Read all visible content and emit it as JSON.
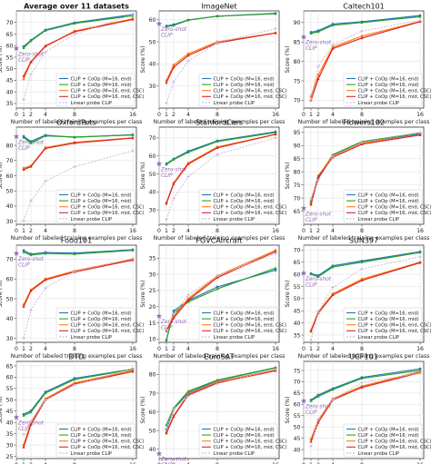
{
  "legend_labels": [
    "CLIP + CoOp (M=16, end)",
    "CLIP + CoOp (M=16, mid)",
    "CLIP + CoOp (M=16, end, CSC)",
    "CLIP + CoOp (M=16, mid, CSC)",
    "Linear probe CLIP"
  ],
  "series_colors": [
    "#1f77b4",
    "#2ca02c",
    "#ff7f0e",
    "#d62728",
    "#c8b4e0"
  ],
  "zeroshot_label": "Zero-shot\nCLIP",
  "zeroshot_color": "#9467bd",
  "chart_data": [
    {
      "type": "line",
      "title": "Average over 11 datasets",
      "xlabel": "Number of labeled training examples per class",
      "ylabel": "Score (%)",
      "x": [
        1,
        2,
        4,
        8,
        16
      ],
      "xticks": [
        0,
        1,
        2,
        4,
        8,
        16
      ],
      "xlim": [
        0,
        16.5
      ],
      "ylim": [
        33,
        75
      ],
      "yticks": [
        35,
        40,
        45,
        50,
        55,
        60,
        65,
        70
      ],
      "zeroshot": 58.8,
      "series": [
        {
          "name": "CLIP + CoOp (M=16, end)",
          "values": [
            59.6,
            62.3,
            66.8,
            69.9,
            73.4
          ]
        },
        {
          "name": "CLIP + CoOp (M=16, mid)",
          "values": [
            59.0,
            62.0,
            66.5,
            69.6,
            72.9
          ]
        },
        {
          "name": "CLIP + CoOp (M=16, end, CSC)",
          "values": [
            45.5,
            52.8,
            59.6,
            66.3,
            71.6
          ]
        },
        {
          "name": "CLIP + CoOp (M=16, mid, CSC)",
          "values": [
            46.8,
            53.0,
            59.9,
            66.0,
            71.3
          ]
        },
        {
          "name": "Linear probe CLIP",
          "values": [
            36.7,
            47.6,
            57.2,
            65.0,
            73.4
          ]
        }
      ]
    },
    {
      "type": "line",
      "title": "ImageNet",
      "xlabel": "Number of labeled training examples per class",
      "ylabel": "Score (%)",
      "x": [
        1,
        2,
        4,
        8,
        16
      ],
      "xticks": [
        0,
        1,
        2,
        4,
        8,
        16
      ],
      "xlim": [
        0,
        16.5
      ],
      "ylim": [
        20,
        64
      ],
      "yticks": [
        30,
        40,
        50,
        60
      ],
      "zeroshot": 58.2,
      "series": [
        {
          "name": "CLIP + CoOp (M=16, end)",
          "values": [
            57.2,
            57.8,
            59.9,
            61.6,
            62.9
          ]
        },
        {
          "name": "CLIP + CoOp (M=16, mid)",
          "values": [
            56.9,
            57.4,
            59.8,
            61.6,
            62.7
          ]
        },
        {
          "name": "CLIP + CoOp (M=16, end, CSC)",
          "values": [
            32.5,
            39.5,
            44.6,
            50.0,
            54.0
          ]
        },
        {
          "name": "CLIP + CoOp (M=16, mid, CSC)",
          "values": [
            31.5,
            38.5,
            43.8,
            49.5,
            54.0
          ]
        },
        {
          "name": "Linear probe CLIP",
          "values": [
            22.2,
            31.9,
            41.3,
            49.6,
            55.9
          ]
        }
      ]
    },
    {
      "type": "line",
      "title": "Caltech101",
      "xlabel": "Number of labeled training examples per class",
      "ylabel": "Score (%)",
      "x": [
        1,
        2,
        4,
        8,
        16
      ],
      "xticks": [
        0,
        1,
        2,
        4,
        8,
        16
      ],
      "xlim": [
        0,
        16.5
      ],
      "ylim": [
        68,
        93
      ],
      "yticks": [
        70,
        75,
        80,
        85,
        90
      ],
      "zeroshot": 86.3,
      "series": [
        {
          "name": "CLIP + CoOp (M=16, end)",
          "values": [
            87.5,
            87.9,
            89.6,
            90.2,
            91.8
          ]
        },
        {
          "name": "CLIP + CoOp (M=16, mid)",
          "values": [
            87.2,
            87.6,
            89.3,
            90.0,
            91.5
          ]
        },
        {
          "name": "CLIP + CoOp (M=16, end, CSC)",
          "values": [
            71.0,
            76.5,
            83.7,
            86.5,
            90.3
          ]
        },
        {
          "name": "CLIP + CoOp (M=16, mid, CSC)",
          "values": [
            70.0,
            75.5,
            83.3,
            86.0,
            90.2
          ]
        },
        {
          "name": "Linear probe CLIP",
          "values": [
            70.2,
            78.7,
            84.3,
            87.8,
            90.6
          ]
        }
      ]
    },
    {
      "type": "line",
      "title": "OxfordPets",
      "xlabel": "Number of labeled training examples per class",
      "ylabel": "Score (%)",
      "x": [
        1,
        2,
        4,
        8,
        16
      ],
      "xticks": [
        0,
        1,
        2,
        4,
        8,
        16
      ],
      "xlim": [
        0,
        16.5
      ],
      "ylim": [
        28,
        92
      ],
      "yticks": [
        30,
        40,
        50,
        60,
        70,
        80
      ],
      "zeroshot": 85.8,
      "series": [
        {
          "name": "CLIP + CoOp (M=16, end)",
          "values": [
            85.9,
            82.6,
            86.7,
            85.3,
            87.0
          ]
        },
        {
          "name": "CLIP + CoOp (M=16, mid)",
          "values": [
            85.2,
            81.5,
            86.2,
            85.5,
            86.8
          ]
        },
        {
          "name": "CLIP + CoOp (M=16, end, CSC)",
          "values": [
            65.0,
            66.5,
            78.5,
            82.0,
            85.0
          ]
        },
        {
          "name": "CLIP + CoOp (M=16, mid, CSC)",
          "values": [
            64.0,
            66.0,
            78.0,
            81.5,
            84.8
          ]
        },
        {
          "name": "Linear probe CLIP",
          "values": [
            30.2,
            43.5,
            56.4,
            65.9,
            76.4
          ]
        }
      ]
    },
    {
      "type": "line",
      "title": "StanfordCars",
      "xlabel": "Number of labeled training examples per class",
      "ylabel": "Score (%)",
      "x": [
        1,
        2,
        4,
        8,
        16
      ],
      "xticks": [
        0,
        1,
        2,
        4,
        8,
        16
      ],
      "xlim": [
        0,
        16.5
      ],
      "ylim": [
        22,
        76
      ],
      "yticks": [
        30,
        40,
        50,
        60,
        70
      ],
      "zeroshot": 55.6,
      "series": [
        {
          "name": "CLIP + CoOp (M=16, end)",
          "values": [
            55.6,
            58.3,
            62.6,
            68.4,
            73.4
          ]
        },
        {
          "name": "CLIP + CoOp (M=16, mid)",
          "values": [
            55.2,
            58.0,
            62.0,
            68.0,
            73.0
          ]
        },
        {
          "name": "CLIP + CoOp (M=16, end, CSC)",
          "values": [
            34.0,
            45.0,
            56.0,
            65.0,
            72.0
          ]
        },
        {
          "name": "CLIP + CoOp (M=16, mid, CSC)",
          "values": [
            33.5,
            44.5,
            55.5,
            64.5,
            72.0
          ]
        },
        {
          "name": "Linear probe CLIP",
          "values": [
            24.6,
            36.4,
            48.4,
            60.8,
            70.1
          ]
        }
      ]
    },
    {
      "type": "line",
      "title": "Flowers102",
      "xlabel": "Number of labeled training examples per class",
      "ylabel": "Score (%)",
      "x": [
        1,
        2,
        4,
        8,
        16
      ],
      "xticks": [
        0,
        1,
        2,
        4,
        8,
        16
      ],
      "xlim": [
        0,
        16.5
      ],
      "ylim": [
        60,
        97
      ],
      "yticks": [
        65,
        70,
        75,
        80,
        85,
        90,
        95
      ],
      "zeroshot": 66.1,
      "series": [
        {
          "name": "CLIP + CoOp (M=16, end)",
          "values": [
            68.1,
            77.5,
            86.2,
            91.2,
            94.5
          ]
        },
        {
          "name": "CLIP + CoOp (M=16, mid)",
          "values": [
            69.0,
            78.0,
            86.5,
            91.5,
            94.8
          ]
        },
        {
          "name": "CLIP + CoOp (M=16, end, CSC)",
          "values": [
            68.0,
            78.5,
            86.0,
            91.0,
            94.0
          ]
        },
        {
          "name": "CLIP + CoOp (M=16, mid, CSC)",
          "values": [
            67.5,
            78.0,
            85.5,
            90.5,
            94.0
          ]
        },
        {
          "name": "Linear probe CLIP",
          "values": [
            69.7,
            76.8,
            85.8,
            91.2,
            94.9
          ]
        }
      ]
    },
    {
      "type": "line",
      "title": "Food101",
      "xlabel": "Number of labeled training examples per class",
      "ylabel": "Score (%)",
      "x": [
        1,
        2,
        4,
        8,
        16
      ],
      "xticks": [
        0,
        1,
        2,
        4,
        8,
        16
      ],
      "xlim": [
        0,
        16.5
      ],
      "ylim": [
        28,
        77
      ],
      "yticks": [
        30,
        40,
        50,
        60,
        70
      ],
      "zeroshot": 72.9,
      "series": [
        {
          "name": "CLIP + CoOp (M=16, end)",
          "values": [
            74.3,
            72.5,
            73.3,
            73.0,
            74.7
          ]
        },
        {
          "name": "CLIP + CoOp (M=16, mid)",
          "values": [
            73.5,
            72.0,
            72.8,
            72.5,
            74.4
          ]
        },
        {
          "name": "CLIP + CoOp (M=16, end, CSC)",
          "values": [
            47.0,
            54.5,
            60.0,
            64.0,
            70.0
          ]
        },
        {
          "name": "CLIP + CoOp (M=16, mid, CSC)",
          "values": [
            46.0,
            54.0,
            59.5,
            63.5,
            69.5
          ]
        },
        {
          "name": "Linear probe CLIP",
          "values": [
            30.1,
            44.3,
            55.4,
            63.8,
            70.2
          ]
        }
      ]
    },
    {
      "type": "line",
      "title": "FGVCAircraft",
      "xlabel": "Number of labeled training examples per class",
      "ylabel": "Score (%)",
      "x": [
        1,
        2,
        4,
        8,
        16
      ],
      "xticks": [
        0,
        1,
        2,
        4,
        8,
        16
      ],
      "xlim": [
        0,
        16.5
      ],
      "ylim": [
        9,
        39
      ],
      "yticks": [
        10,
        15,
        20,
        25,
        30,
        35
      ],
      "zeroshot": 17.1,
      "series": [
        {
          "name": "CLIP + CoOp (M=16, end)",
          "values": [
            9.6,
            18.7,
            21.9,
            26.1,
            31.3
          ]
        },
        {
          "name": "CLIP + CoOp (M=16, mid)",
          "values": [
            9.8,
            18.0,
            21.5,
            25.5,
            31.9
          ]
        },
        {
          "name": "CLIP + CoOp (M=16, end, CSC)",
          "values": [
            13.0,
            17.0,
            22.5,
            29.5,
            37.4
          ]
        },
        {
          "name": "CLIP + CoOp (M=16, mid, CSC)",
          "values": [
            12.5,
            16.5,
            22.0,
            29.0,
            37.0
          ]
        },
        {
          "name": "Linear probe CLIP",
          "values": [
            12.9,
            17.9,
            23.6,
            29.5,
            36.4
          ]
        }
      ]
    },
    {
      "type": "line",
      "title": "SUN397",
      "xlabel": "Number of labeled training examples per class",
      "ylabel": "Score (%)",
      "x": [
        1,
        2,
        4,
        8,
        16
      ],
      "xticks": [
        0,
        1,
        2,
        4,
        8,
        16
      ],
      "xlim": [
        0,
        16.5
      ],
      "ylim": [
        32,
        72
      ],
      "yticks": [
        35,
        40,
        45,
        50,
        55,
        60,
        65,
        70
      ],
      "zeroshot": 60.5,
      "series": [
        {
          "name": "CLIP + CoOp (M=16, end)",
          "values": [
            60.3,
            59.5,
            63.5,
            65.5,
            69.3
          ]
        },
        {
          "name": "CLIP + CoOp (M=16, mid)",
          "values": [
            60.0,
            59.0,
            63.0,
            65.0,
            69.0
          ]
        },
        {
          "name": "CLIP + CoOp (M=16, end, CSC)",
          "values": [
            37.0,
            44.5,
            52.0,
            58.0,
            65.0
          ]
        },
        {
          "name": "CLIP + CoOp (M=16, mid, CSC)",
          "values": [
            36.5,
            44.0,
            51.5,
            57.5,
            64.8
          ]
        },
        {
          "name": "Linear probe CLIP",
          "values": [
            32.8,
            44.4,
            54.6,
            62.2,
            67.2
          ]
        }
      ]
    },
    {
      "type": "line",
      "title": "DTD",
      "xlabel": "Number of labeled training examples per class",
      "ylabel": "Score (%)",
      "x": [
        1,
        2,
        4,
        8,
        16
      ],
      "xticks": [
        0,
        1,
        2,
        4,
        8,
        16
      ],
      "xlim": [
        0,
        16.5
      ],
      "ylim": [
        24,
        67
      ],
      "yticks": [
        25,
        30,
        35,
        40,
        45,
        50,
        55,
        60,
        65
      ],
      "zeroshot": 42.3,
      "series": [
        {
          "name": "CLIP + CoOp (M=16, end)",
          "values": [
            43.6,
            45.1,
            53.5,
            59.5,
            63.6
          ]
        },
        {
          "name": "CLIP + CoOp (M=16, mid)",
          "values": [
            43.0,
            44.5,
            53.0,
            59.0,
            63.5
          ]
        },
        {
          "name": "CLIP + CoOp (M=16, end, CSC)",
          "values": [
            30.0,
            40.0,
            50.5,
            57.5,
            63.0
          ]
        },
        {
          "name": "CLIP + CoOp (M=16, mid, CSC)",
          "values": [
            29.0,
            39.0,
            50.0,
            57.0,
            62.5
          ]
        },
        {
          "name": "Linear probe CLIP",
          "values": [
            34.6,
            40.5,
            49.9,
            56.6,
            63.9
          ]
        }
      ]
    },
    {
      "type": "line",
      "title": "EuroSAT",
      "xlabel": "Number of labeled training examples per class",
      "ylabel": "Score (%)",
      "x": [
        1,
        2,
        4,
        8,
        16
      ],
      "xticks": [
        0,
        1,
        2,
        4,
        8,
        16
      ],
      "xlim": [
        0,
        16.5
      ],
      "ylim": [
        35,
        87
      ],
      "yticks": [
        40,
        50,
        60,
        70,
        80
      ],
      "zeroshot": 37.6,
      "series": [
        {
          "name": "CLIP + CoOp (M=16, end)",
          "values": [
            50.6,
            61.5,
            70.2,
            76.7,
            83.5
          ]
        },
        {
          "name": "CLIP + CoOp (M=16, mid)",
          "values": [
            53.0,
            62.0,
            71.0,
            77.0,
            83.7
          ]
        },
        {
          "name": "CLIP + CoOp (M=16, end, CSC)",
          "values": [
            49.0,
            58.0,
            69.5,
            76.0,
            82.5
          ]
        },
        {
          "name": "CLIP + CoOp (M=16, mid, CSC)",
          "values": [
            48.5,
            57.5,
            69.0,
            75.5,
            82.0
          ]
        },
        {
          "name": "Linear probe CLIP",
          "values": [
            51.0,
            61.5,
            68.3,
            75.0,
            82.8
          ]
        }
      ]
    },
    {
      "type": "line",
      "title": "UCF101",
      "xlabel": "Number of labeled training examples per class",
      "ylabel": "Score (%)",
      "x": [
        1,
        2,
        4,
        8,
        16
      ],
      "xticks": [
        0,
        1,
        2,
        4,
        8,
        16
      ],
      "xlim": [
        0,
        16.5
      ],
      "ylim": [
        36,
        79
      ],
      "yticks": [
        40,
        45,
        50,
        55,
        60,
        65,
        70,
        75
      ],
      "zeroshot": 61.5,
      "series": [
        {
          "name": "CLIP + CoOp (M=16, end)",
          "values": [
            61.9,
            64.1,
            67.0,
            71.9,
            75.7
          ]
        },
        {
          "name": "CLIP + CoOp (M=16, mid)",
          "values": [
            61.5,
            63.5,
            66.5,
            71.5,
            75.0
          ]
        },
        {
          "name": "CLIP + CoOp (M=16, end, CSC)",
          "values": [
            44.5,
            53.0,
            62.5,
            68.0,
            74.5
          ]
        },
        {
          "name": "CLIP + CoOp (M=16, mid, CSC)",
          "values": [
            43.5,
            52.0,
            62.0,
            67.5,
            74.0
          ]
        },
        {
          "name": "Linear probe CLIP",
          "values": [
            41.4,
            53.4,
            62.2,
            69.6,
            73.7
          ]
        }
      ]
    }
  ]
}
